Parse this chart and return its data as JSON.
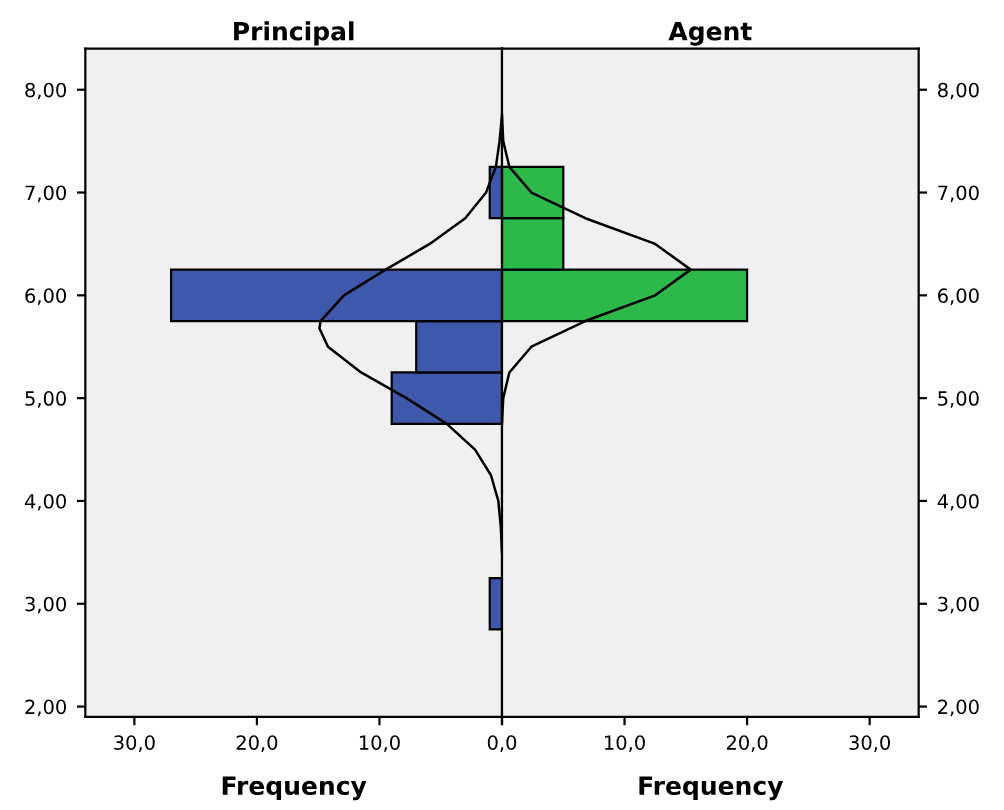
{
  "chart_data": [
    {
      "type": "histogram",
      "title": "Principal",
      "xlabel": "Frequency",
      "orientation": "horizontal",
      "grid": false,
      "xlim": [
        34,
        0
      ],
      "xticks": [
        {
          "value": 30,
          "label": "30,0"
        },
        {
          "value": 20,
          "label": "20,0"
        },
        {
          "value": 10,
          "label": "10,0"
        },
        {
          "value": 0,
          "label": null
        }
      ],
      "ylim": [
        1.9,
        8.4
      ],
      "yticks": [
        {
          "value": 2,
          "label": "2,00"
        },
        {
          "value": 3,
          "label": "3,00"
        },
        {
          "value": 4,
          "label": "4,00"
        },
        {
          "value": 5,
          "label": "5,00"
        },
        {
          "value": 6,
          "label": "6,00"
        },
        {
          "value": 7,
          "label": "7,00"
        },
        {
          "value": 8,
          "label": "8,00"
        }
      ],
      "series": [
        {
          "color": "#3e58ac",
          "bins": [
            2.75,
            3.25,
            3.75,
            4.25,
            4.75,
            5.25,
            5.75,
            6.25,
            6.75,
            7.25
          ],
          "values": [
            1,
            null,
            null,
            null,
            9,
            7,
            27,
            null,
            1
          ]
        },
        {
          "type": "line",
          "color": "#000000",
          "x": [
            3.5,
            3.75,
            4.0,
            4.25,
            4.5,
            4.75,
            5.0,
            5.25,
            5.5,
            5.68,
            5.75,
            6.0,
            6.25,
            6.5,
            6.75,
            7.0,
            7.25,
            7.5,
            7.75
          ],
          "values": [
            0,
            0.1,
            0.3,
            0.9,
            2.2,
            4.5,
            7.8,
            11.5,
            14.2,
            14.9,
            14.8,
            12.9,
            9.5,
            5.9,
            3.0,
            1.3,
            0.5,
            0.2,
            0
          ]
        }
      ]
    },
    {
      "type": "histogram",
      "title": "Agent",
      "xlabel": "Frequency",
      "orientation": "horizontal",
      "grid": false,
      "xlim": [
        0,
        34
      ],
      "xticks": [
        {
          "value": 0,
          "label": "0,0"
        },
        {
          "value": 10,
          "label": "10,0"
        },
        {
          "value": 20,
          "label": "20,0"
        },
        {
          "value": 30,
          "label": "30,0"
        }
      ],
      "ylim": [
        1.9,
        8.4
      ],
      "yticks": [
        {
          "value": 2,
          "label": "2,00"
        },
        {
          "value": 3,
          "label": "3,00"
        },
        {
          "value": 4,
          "label": "4,00"
        },
        {
          "value": 5,
          "label": "5,00"
        },
        {
          "value": 6,
          "label": "6,00"
        },
        {
          "value": 7,
          "label": "7,00"
        },
        {
          "value": 8,
          "label": "8,00"
        }
      ],
      "series": [
        {
          "color": "#2db84a",
          "bins": [
            5.75,
            6.25,
            6.75,
            7.25
          ],
          "values": [
            20,
            5,
            5
          ]
        },
        {
          "type": "line",
          "color": "#000000",
          "x": [
            4.75,
            5.0,
            5.25,
            5.5,
            5.75,
            6.0,
            6.25,
            6.5,
            6.75,
            7.0,
            7.25,
            7.5,
            7.75
          ],
          "values": [
            0,
            0.1,
            0.6,
            2.4,
            6.8,
            12.5,
            15.4,
            12.5,
            6.8,
            2.4,
            0.6,
            0.1,
            0
          ]
        }
      ]
    }
  ]
}
